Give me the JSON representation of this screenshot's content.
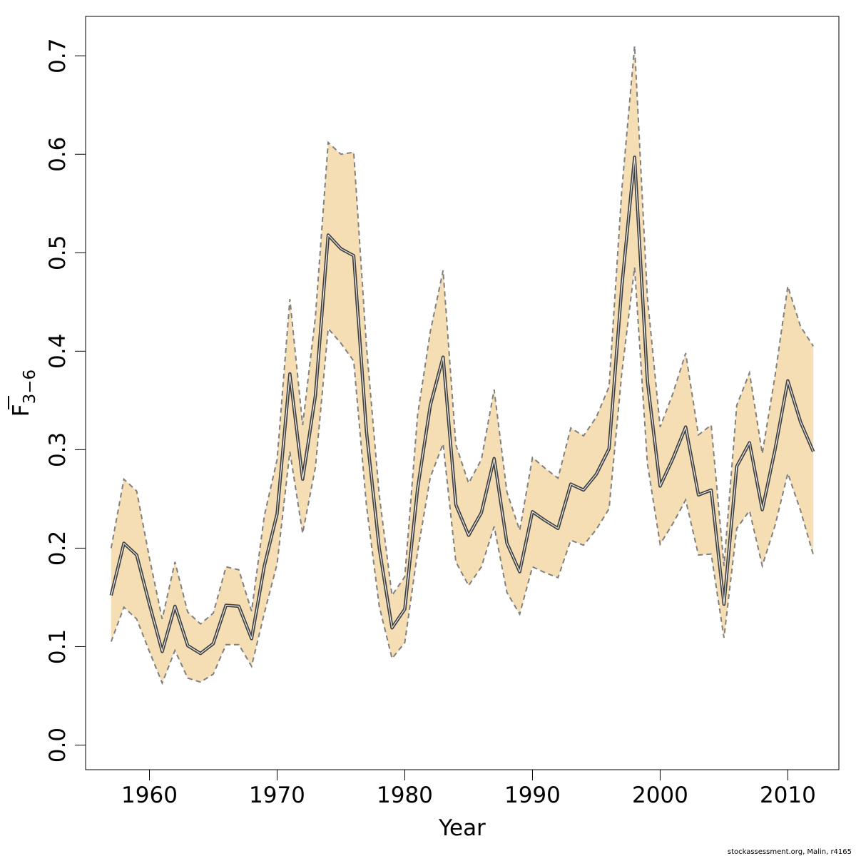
{
  "chart_data": {
    "type": "line",
    "xlabel": "Year",
    "ylabel_main": "F",
    "ylabel_sub": "3−6",
    "xlim": [
      1955,
      2014
    ],
    "ylim": [
      -0.025,
      0.74
    ],
    "xticks": [
      1960,
      1970,
      1980,
      1990,
      2000,
      2010
    ],
    "yticks": [
      0.0,
      0.1,
      0.2,
      0.3,
      0.4,
      0.5,
      0.6,
      0.7
    ],
    "ytick_labels": [
      "0.0",
      "0.1",
      "0.2",
      "0.3",
      "0.4",
      "0.5",
      "0.6",
      "0.7"
    ],
    "band_color": "#f5deb3",
    "line_color": "#404040",
    "bound_line_color": "#808080",
    "grid": false,
    "x": [
      1957,
      1958,
      1959,
      1960,
      1961,
      1962,
      1963,
      1964,
      1965,
      1966,
      1967,
      1968,
      1969,
      1970,
      1971,
      1972,
      1973,
      1974,
      1975,
      1976,
      1977,
      1978,
      1979,
      1980,
      1981,
      1982,
      1983,
      1984,
      1985,
      1986,
      1987,
      1988,
      1989,
      1990,
      1991,
      1992,
      1993,
      1994,
      1995,
      1996,
      1997,
      1998,
      1999,
      2000,
      2001,
      2002,
      2003,
      2004,
      2005,
      2006,
      2007,
      2008,
      2009,
      2010,
      2011,
      2012
    ],
    "series": [
      {
        "values": [
          0.152,
          0.205,
          0.193,
          0.143,
          0.095,
          0.141,
          0.101,
          0.093,
          0.103,
          0.142,
          0.141,
          0.108,
          0.182,
          0.235,
          0.377,
          0.27,
          0.355,
          0.518,
          0.504,
          0.497,
          0.318,
          0.2,
          0.119,
          0.138,
          0.26,
          0.345,
          0.394,
          0.244,
          0.213,
          0.236,
          0.291,
          0.205,
          0.176,
          0.237,
          0.228,
          0.22,
          0.265,
          0.259,
          0.275,
          0.301,
          0.466,
          0.597,
          0.37,
          0.263,
          0.291,
          0.323,
          0.254,
          0.259,
          0.143,
          0.283,
          0.307,
          0.239,
          0.3,
          0.37,
          0.328,
          0.298
        ]
      }
    ],
    "upper": [
      0.2,
      0.27,
      0.258,
      0.19,
      0.128,
      0.186,
      0.135,
      0.123,
      0.134,
      0.181,
      0.178,
      0.136,
      0.233,
      0.29,
      0.453,
      0.325,
      0.435,
      0.612,
      0.6,
      0.602,
      0.405,
      0.254,
      0.152,
      0.171,
      0.335,
      0.42,
      0.482,
      0.305,
      0.266,
      0.29,
      0.361,
      0.257,
      0.218,
      0.292,
      0.281,
      0.271,
      0.322,
      0.314,
      0.333,
      0.364,
      0.564,
      0.71,
      0.455,
      0.323,
      0.357,
      0.398,
      0.315,
      0.325,
      0.182,
      0.345,
      0.378,
      0.296,
      0.375,
      0.466,
      0.425,
      0.405
    ],
    "lower": [
      0.105,
      0.14,
      0.128,
      0.095,
      0.063,
      0.096,
      0.068,
      0.064,
      0.072,
      0.102,
      0.102,
      0.08,
      0.134,
      0.184,
      0.298,
      0.215,
      0.282,
      0.423,
      0.408,
      0.39,
      0.243,
      0.141,
      0.088,
      0.104,
      0.196,
      0.272,
      0.306,
      0.186,
      0.162,
      0.181,
      0.222,
      0.155,
      0.133,
      0.181,
      0.175,
      0.17,
      0.208,
      0.203,
      0.219,
      0.24,
      0.378,
      0.485,
      0.286,
      0.204,
      0.225,
      0.249,
      0.193,
      0.194,
      0.109,
      0.22,
      0.238,
      0.182,
      0.223,
      0.276,
      0.238,
      0.193
    ]
  },
  "credit_text": "stockassessment.org, Malin, r4165"
}
